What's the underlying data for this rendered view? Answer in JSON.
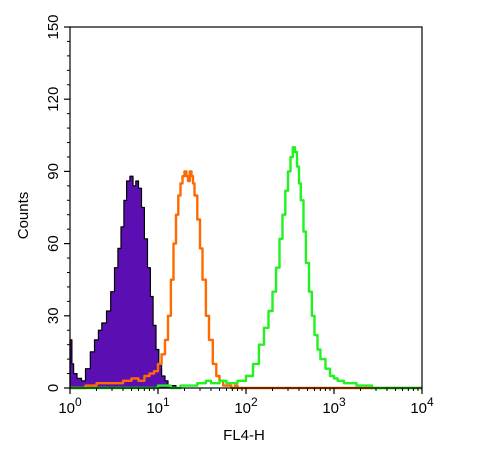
{
  "chart_data": {
    "type": "area",
    "xlabel": "FL4-H",
    "ylabel": "Counts",
    "x_scale": "log",
    "xlim": [
      1,
      10000
    ],
    "ylim": [
      0,
      150
    ],
    "x_ticks": [
      {
        "value": 1,
        "base": "10",
        "exp": "0"
      },
      {
        "value": 10,
        "base": "10",
        "exp": "1"
      },
      {
        "value": 100,
        "base": "10",
        "exp": "2"
      },
      {
        "value": 1000,
        "base": "10",
        "exp": "3"
      },
      {
        "value": 10000,
        "base": "10",
        "exp": "4"
      }
    ],
    "y_ticks": [
      0,
      30,
      60,
      90,
      120,
      150
    ],
    "grid": false,
    "series": [
      {
        "color": "#5b0fb3",
        "outline_color": "#000000",
        "filled": true,
        "x": [
          1.0,
          1.05,
          1.1,
          1.2,
          1.35,
          1.5,
          1.7,
          1.9,
          2.1,
          2.3,
          2.6,
          2.9,
          3.2,
          3.5,
          3.8,
          4.1,
          4.4,
          4.8,
          5.2,
          5.6,
          6.0,
          6.5,
          7.0,
          7.6,
          8.2,
          8.8,
          9.5,
          10.2,
          11.0,
          12.0,
          13.0,
          14.5,
          16.0,
          18.0
        ],
        "y": [
          20,
          10,
          6,
          4,
          3,
          8,
          15,
          20,
          24,
          27,
          32,
          40,
          50,
          58,
          67,
          78,
          86,
          88,
          84,
          86,
          83,
          75,
          62,
          50,
          38,
          26,
          16,
          10,
          5,
          3,
          1,
          1,
          0,
          0
        ]
      },
      {
        "color": "#ff6a00",
        "filled": false,
        "x": [
          1.0,
          1.5,
          2.0,
          3.0,
          4.0,
          5.0,
          6.0,
          7.0,
          8.0,
          9.0,
          10.0,
          11.0,
          12.0,
          13.0,
          14.0,
          15.0,
          16.0,
          17.0,
          18.0,
          19.0,
          20.0,
          21.0,
          22.0,
          23.0,
          24.0,
          25.0,
          26.0,
          28.0,
          30.0,
          32.0,
          35.0,
          38.0,
          42.0,
          46.0,
          50.0,
          55.0,
          60.0,
          68.0,
          75.0,
          80.0,
          100.0,
          1000.0,
          10000.0
        ],
        "y": [
          0,
          1,
          2,
          2,
          3,
          4,
          3,
          5,
          6,
          7,
          10,
          14,
          20,
          30,
          45,
          60,
          72,
          80,
          85,
          88,
          90,
          88,
          86,
          90,
          88,
          85,
          80,
          70,
          58,
          45,
          30,
          20,
          10,
          5,
          3,
          1,
          1,
          0,
          1,
          0,
          0,
          0,
          0
        ]
      },
      {
        "color": "#21f221",
        "filled": false,
        "x": [
          1.0,
          5.0,
          10.0,
          14.0,
          18.0,
          22.0,
          28.0,
          35.0,
          40.0,
          50.0,
          60.0,
          80.0,
          100.0,
          120.0,
          140.0,
          160.0,
          180.0,
          200.0,
          220.0,
          240.0,
          260.0,
          280.0,
          300.0,
          320.0,
          340.0,
          360.0,
          380.0,
          400.0,
          420.0,
          450.0,
          480.0,
          520.0,
          560.0,
          600.0,
          650.0,
          700.0,
          800.0,
          900.0,
          1000.0,
          1100.0,
          1300.0,
          1500.0,
          1800.0,
          2200.0,
          2700.0,
          3500.0,
          5000.0,
          10000.0
        ],
        "y": [
          0,
          0,
          1,
          0,
          1,
          1,
          2,
          3,
          2,
          3,
          2,
          3,
          5,
          10,
          18,
          25,
          32,
          40,
          50,
          62,
          72,
          82,
          90,
          96,
          100,
          98,
          92,
          85,
          78,
          65,
          52,
          40,
          30,
          22,
          16,
          12,
          8,
          5,
          4,
          3,
          2,
          2,
          1,
          1,
          0,
          0,
          0,
          0
        ]
      }
    ]
  }
}
